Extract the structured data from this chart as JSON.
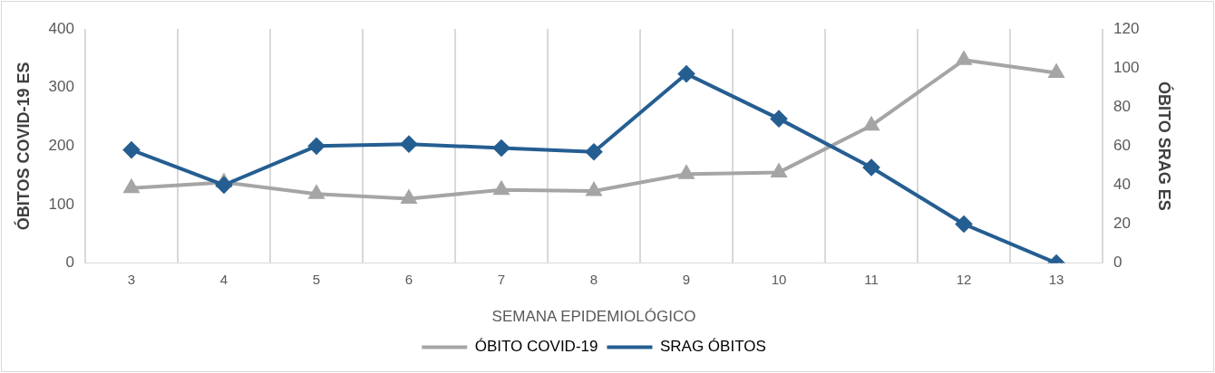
{
  "chart_data": {
    "type": "line",
    "xlabel": "SEMANA EPIDEMIOLÓGICO",
    "ylabel": "ÓBITOS COVID-19 ES",
    "y2label": "ÓBITO SRAG ES",
    "categories": [
      "3",
      "4",
      "5",
      "6",
      "7",
      "8",
      "9",
      "10",
      "11",
      "12",
      "13"
    ],
    "series": [
      {
        "name": "ÓBITO COVID-19",
        "color": "#a5a5a5",
        "marker": "triangle",
        "values": [
          128,
          138,
          118,
          110,
          125,
          123,
          152,
          155,
          235,
          347,
          325
        ]
      },
      {
        "name": "SRAG ÓBITOS",
        "color": "#255e91",
        "marker": "diamond",
        "axis": "y2",
        "values": [
          58,
          40,
          60,
          61,
          59,
          57,
          97,
          74,
          49,
          20,
          0
        ]
      }
    ],
    "ylim": [
      0,
      400
    ],
    "yticks": [
      0,
      100,
      200,
      300,
      400
    ],
    "y2lim": [
      0,
      120
    ],
    "y2ticks": [
      0,
      20,
      40,
      60,
      80,
      100,
      120
    ],
    "grid": "x",
    "legend": "bottom",
    "line_style": "solid"
  }
}
